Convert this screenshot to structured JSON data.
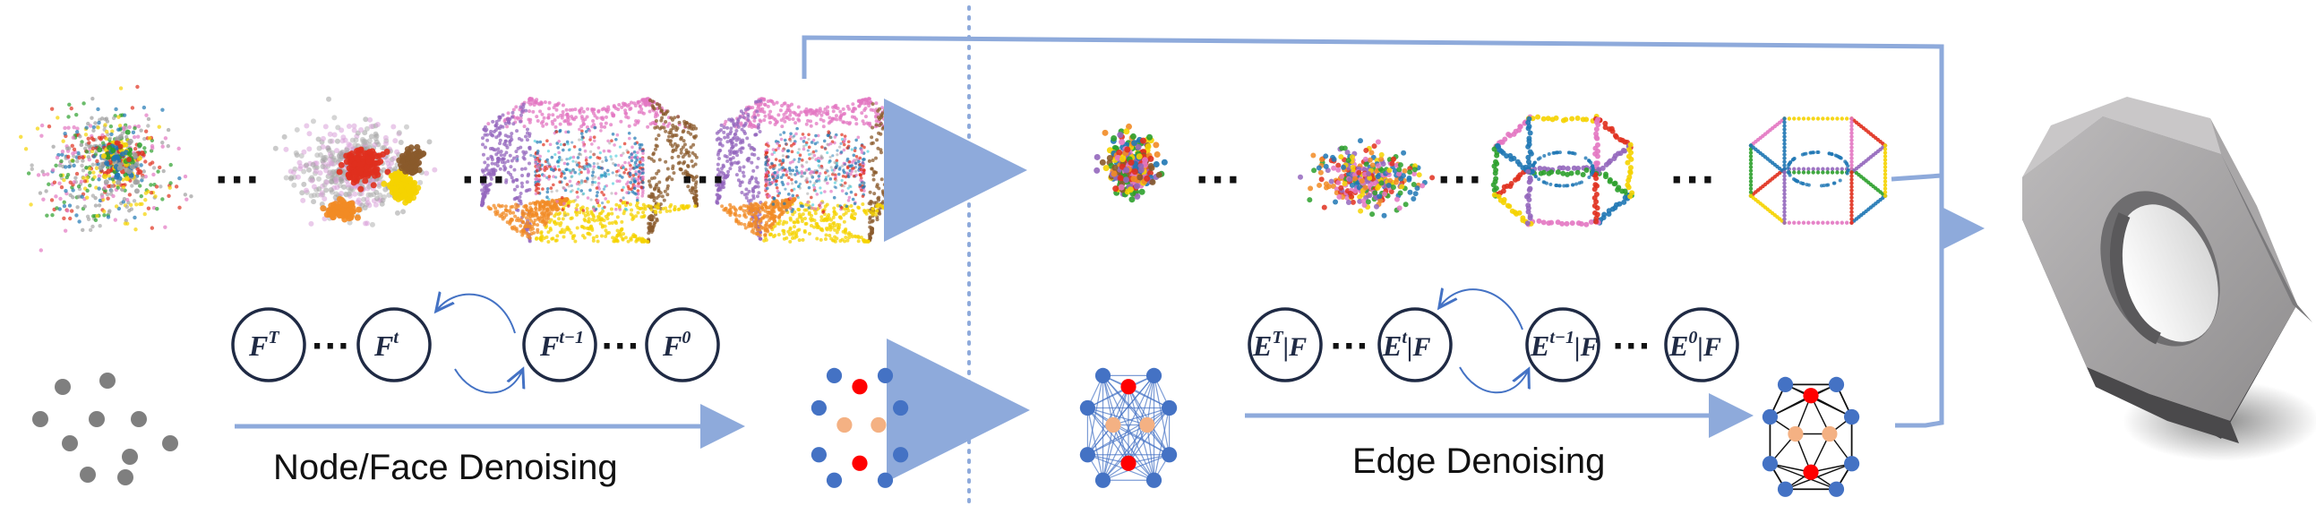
{
  "labels": {
    "node_face": "Node/Face Denoising",
    "edge": "Edge Denoising"
  },
  "face_states": [
    {
      "main": "F",
      "sup": "T",
      "cond": ""
    },
    {
      "main": "F",
      "sup": "t",
      "cond": ""
    },
    {
      "main": "F",
      "sup": "t−1",
      "cond": ""
    },
    {
      "main": "F",
      "sup": "0",
      "cond": ""
    }
  ],
  "edge_states": [
    {
      "main": "E",
      "sup": "T",
      "cond": "|F"
    },
    {
      "main": "E",
      "sup": "t",
      "cond": "|F"
    },
    {
      "main": "E",
      "sup": "t−1",
      "cond": "|F"
    },
    {
      "main": "E",
      "sup": "0",
      "cond": "|F"
    }
  ],
  "ellipsis": "···",
  "colors": {
    "arrow": "#8eaadb",
    "divider": "#8eaadb",
    "circle_stroke": "#1f2a44",
    "node_blue": "#4472c4",
    "node_red": "#ff0000",
    "node_peach": "#f4b183",
    "noise_gray": "#7f7f7f",
    "solid_face": "#8c8a8c",
    "solid_dark": "#5a595b"
  },
  "icons": [
    "curved-arrow-icon",
    "straight-arrow-icon",
    "point-cloud",
    "hexagonal-nut-solid"
  ]
}
